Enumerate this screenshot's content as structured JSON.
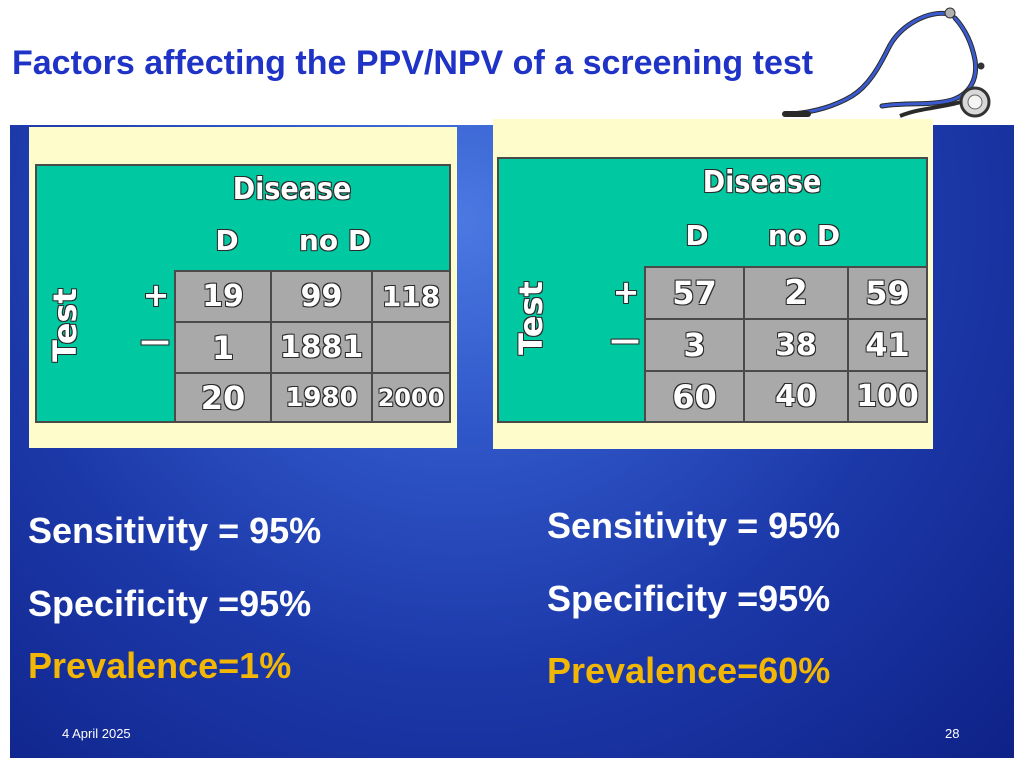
{
  "slide": {
    "title": "Factors affecting the PPV/NPV of a screening test",
    "date": "4 April 2025",
    "page_number": "28"
  },
  "colors": {
    "title": "#1f33c6",
    "panel": "#1c38a8",
    "table_bg": "#00c8a0",
    "cell_bg": "#a9a9a9",
    "frame": "#fffccc",
    "prevalence_text": "#f2b705"
  },
  "icons": [
    "stethoscope-icon"
  ],
  "left_table": {
    "header": "Disease",
    "col_labels": [
      "D",
      "no D"
    ],
    "row_label": "Test",
    "row_signs": [
      "+",
      "—"
    ],
    "rows": [
      [
        "19",
        "99",
        "118"
      ],
      [
        "1",
        "1881",
        ""
      ],
      [
        "20",
        "1980",
        "2000"
      ]
    ]
  },
  "right_table": {
    "header": "Disease",
    "col_labels": [
      "D",
      "no D"
    ],
    "row_label": "Test",
    "row_signs": [
      "+",
      "—"
    ],
    "rows": [
      [
        "57",
        "2",
        "59"
      ],
      [
        "3",
        "38",
        "41"
      ],
      [
        "60",
        "40",
        "100"
      ]
    ]
  },
  "left_stats": {
    "sensitivity": "Sensitivity = 95%",
    "specificity": "Specificity =95%",
    "prevalence": "Prevalence=1%"
  },
  "right_stats": {
    "sensitivity": "Sensitivity = 95%",
    "specificity": "Specificity =95%",
    "prevalence": "Prevalence=60%"
  }
}
